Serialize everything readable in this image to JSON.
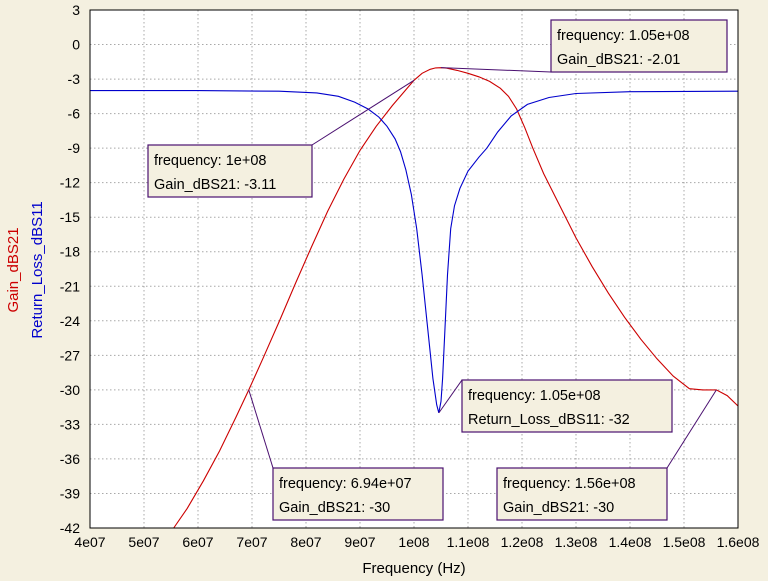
{
  "chart_data": {
    "type": "line",
    "xlabel": "Frequency (Hz)",
    "ylabels": [
      {
        "text": "Gain_dBS21",
        "color": "#cc0000"
      },
      {
        "text": "Return_Loss_dBS11",
        "color": "#0000cc"
      }
    ],
    "xlim": [
      40000000,
      160000000
    ],
    "ylim": [
      -42,
      3
    ],
    "grid": true,
    "x_ticks": [
      {
        "value": 40000000,
        "label": "4e07"
      },
      {
        "value": 50000000,
        "label": "5e07"
      },
      {
        "value": 60000000,
        "label": "6e07"
      },
      {
        "value": 70000000,
        "label": "7e07"
      },
      {
        "value": 80000000,
        "label": "8e07"
      },
      {
        "value": 90000000,
        "label": "9e07"
      },
      {
        "value": 100000000,
        "label": "1e08"
      },
      {
        "value": 110000000,
        "label": "1.1e08"
      },
      {
        "value": 120000000,
        "label": "1.2e08"
      },
      {
        "value": 130000000,
        "label": "1.3e08"
      },
      {
        "value": 140000000,
        "label": "1.4e08"
      },
      {
        "value": 150000000,
        "label": "1.5e08"
      },
      {
        "value": 160000000,
        "label": "1.6e08"
      }
    ],
    "y_ticks": [
      3,
      0,
      -3,
      -6,
      -9,
      -12,
      -15,
      -18,
      -21,
      -24,
      -27,
      -30,
      -33,
      -36,
      -39,
      -42
    ],
    "series": [
      {
        "name": "Gain_dBS21",
        "color": "#cc0000",
        "points": [
          [
            55500000,
            -42.0
          ],
          [
            58000000,
            -40.3
          ],
          [
            61000000,
            -37.9
          ],
          [
            64000000,
            -35.3
          ],
          [
            67000000,
            -32.4
          ],
          [
            69400000,
            -30.0
          ],
          [
            72000000,
            -27.3
          ],
          [
            75000000,
            -24.1
          ],
          [
            78000000,
            -20.8
          ],
          [
            81000000,
            -17.6
          ],
          [
            84000000,
            -14.5
          ],
          [
            87000000,
            -11.7
          ],
          [
            90000000,
            -9.2
          ],
          [
            93000000,
            -7.1
          ],
          [
            96000000,
            -5.3
          ],
          [
            98000000,
            -4.2
          ],
          [
            100000000,
            -3.11
          ],
          [
            101500000,
            -2.5
          ],
          [
            103000000,
            -2.15
          ],
          [
            104000000,
            -2.03
          ],
          [
            105000000,
            -2.01
          ],
          [
            106000000,
            -2.05
          ],
          [
            108000000,
            -2.25
          ],
          [
            110000000,
            -2.5
          ],
          [
            112000000,
            -2.8
          ],
          [
            114000000,
            -3.2
          ],
          [
            116000000,
            -3.8
          ],
          [
            117500000,
            -4.5
          ],
          [
            119000000,
            -5.6
          ],
          [
            120500000,
            -7.2
          ],
          [
            122000000,
            -9.0
          ],
          [
            124000000,
            -11.2
          ],
          [
            127000000,
            -14.0
          ],
          [
            130000000,
            -16.8
          ],
          [
            133000000,
            -19.3
          ],
          [
            136000000,
            -21.6
          ],
          [
            139000000,
            -23.7
          ],
          [
            142000000,
            -25.6
          ],
          [
            145000000,
            -27.3
          ],
          [
            148000000,
            -28.8
          ],
          [
            151000000,
            -29.9
          ],
          [
            153500000,
            -30.0
          ],
          [
            156000000,
            -30.0
          ],
          [
            158000000,
            -30.5
          ],
          [
            160000000,
            -31.4
          ]
        ]
      },
      {
        "name": "Return_Loss_dBS11",
        "color": "#0000cc",
        "points": [
          [
            40000000,
            -4.0
          ],
          [
            60000000,
            -4.0
          ],
          [
            75000000,
            -4.05
          ],
          [
            82000000,
            -4.2
          ],
          [
            86000000,
            -4.5
          ],
          [
            89000000,
            -5.0
          ],
          [
            91500000,
            -5.6
          ],
          [
            93500000,
            -6.3
          ],
          [
            95000000,
            -7.1
          ],
          [
            96500000,
            -8.2
          ],
          [
            97500000,
            -9.3
          ],
          [
            98500000,
            -10.9
          ],
          [
            99500000,
            -13.0
          ],
          [
            100500000,
            -16.0
          ],
          [
            101500000,
            -20.0
          ],
          [
            102500000,
            -24.5
          ],
          [
            103500000,
            -29.0
          ],
          [
            104200000,
            -31.3
          ],
          [
            104600000,
            -32.0
          ],
          [
            105000000,
            -31.0
          ],
          [
            105300000,
            -29.0
          ],
          [
            105700000,
            -25.0
          ],
          [
            106200000,
            -20.0
          ],
          [
            106800000,
            -16.0
          ],
          [
            107500000,
            -14.0
          ],
          [
            108500000,
            -12.5
          ],
          [
            110000000,
            -11.0
          ],
          [
            112000000,
            -9.8
          ],
          [
            113500000,
            -9.0
          ],
          [
            115500000,
            -7.6
          ],
          [
            118000000,
            -6.2
          ],
          [
            121000000,
            -5.2
          ],
          [
            125000000,
            -4.6
          ],
          [
            130000000,
            -4.25
          ],
          [
            140000000,
            -4.1
          ],
          [
            160000000,
            -4.05
          ]
        ]
      }
    ],
    "markers": [
      {
        "series": 0,
        "x": 105000000,
        "y": -2.01,
        "lines": [
          "frequency: 1.05e+08",
          "Gain_dBS21: -2.01"
        ]
      },
      {
        "series": 0,
        "x": 100000000,
        "y": -3.11,
        "lines": [
          "frequency: 1e+08",
          "Gain_dBS21: -3.11"
        ]
      },
      {
        "series": 1,
        "x": 104600000,
        "y": -32.0,
        "lines": [
          "frequency: 1.05e+08",
          "Return_Loss_dBS11: -32"
        ]
      },
      {
        "series": 0,
        "x": 69400000,
        "y": -30.0,
        "lines": [
          "frequency: 6.94e+07",
          "Gain_dBS21: -30"
        ]
      },
      {
        "series": 0,
        "x": 156000000,
        "y": -30.0,
        "lines": [
          "frequency: 1.56e+08",
          "Gain_dBS21: -30"
        ]
      }
    ]
  }
}
